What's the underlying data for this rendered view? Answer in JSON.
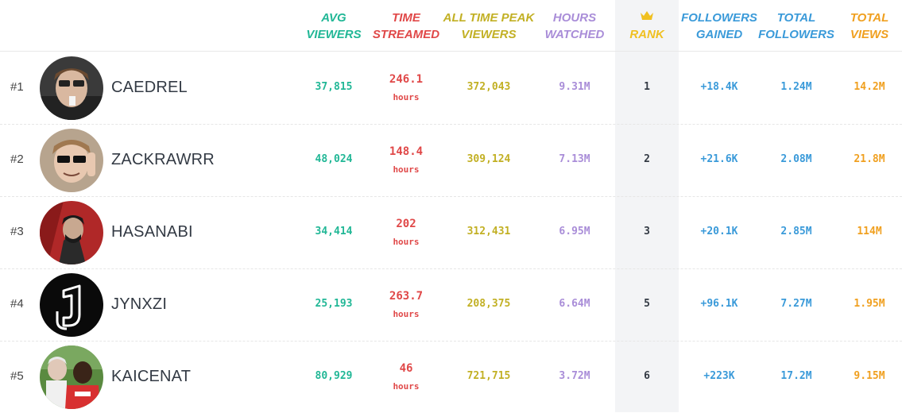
{
  "headers": {
    "avg": [
      "AVG",
      "VIEWERS"
    ],
    "time": [
      "TIME",
      "STREAMED"
    ],
    "peak": [
      "ALL TIME PEAK",
      "VIEWERS"
    ],
    "hours": [
      "HOURS",
      "WATCHED"
    ],
    "rank": "RANK",
    "followers_gained": [
      "FOLLOWERS",
      "GAINED"
    ],
    "total_followers": [
      "TOTAL",
      "FOLLOWERS"
    ],
    "total_views": [
      "TOTAL",
      "VIEWS"
    ]
  },
  "colors": {
    "avg": "#21b796",
    "time": "#e04848",
    "peak": "#c2b024",
    "hours": "#a98dd8",
    "rank": "#f0c020",
    "followers": "#3a9ad9",
    "views": "#f0a020"
  },
  "rows": [
    {
      "num": "#1",
      "name": "CAEDREL",
      "avg": "37,815",
      "time": "246.1",
      "time_unit": "hours",
      "peak": "372,043",
      "hours": "9.31M",
      "rank": "1",
      "followers_gained": "+18.4K",
      "total_followers": "1.24M",
      "total_views": "14.2M"
    },
    {
      "num": "#2",
      "name": "ZACKRAWRR",
      "avg": "48,024",
      "time": "148.4",
      "time_unit": "hours",
      "peak": "309,124",
      "hours": "7.13M",
      "rank": "2",
      "followers_gained": "+21.6K",
      "total_followers": "2.08M",
      "total_views": "21.8M"
    },
    {
      "num": "#3",
      "name": "HASANABI",
      "avg": "34,414",
      "time": "202",
      "time_unit": "hours",
      "peak": "312,431",
      "hours": "6.95M",
      "rank": "3",
      "followers_gained": "+20.1K",
      "total_followers": "2.85M",
      "total_views": "114M"
    },
    {
      "num": "#4",
      "name": "JYNXZI",
      "avg": "25,193",
      "time": "263.7",
      "time_unit": "hours",
      "peak": "208,375",
      "hours": "6.64M",
      "rank": "5",
      "followers_gained": "+96.1K",
      "total_followers": "7.27M",
      "total_views": "1.95M"
    },
    {
      "num": "#5",
      "name": "KAICENAT",
      "avg": "80,929",
      "time": "46",
      "time_unit": "hours",
      "peak": "721,715",
      "hours": "3.72M",
      "rank": "6",
      "followers_gained": "+223K",
      "total_followers": "17.2M",
      "total_views": "9.15M"
    }
  ]
}
